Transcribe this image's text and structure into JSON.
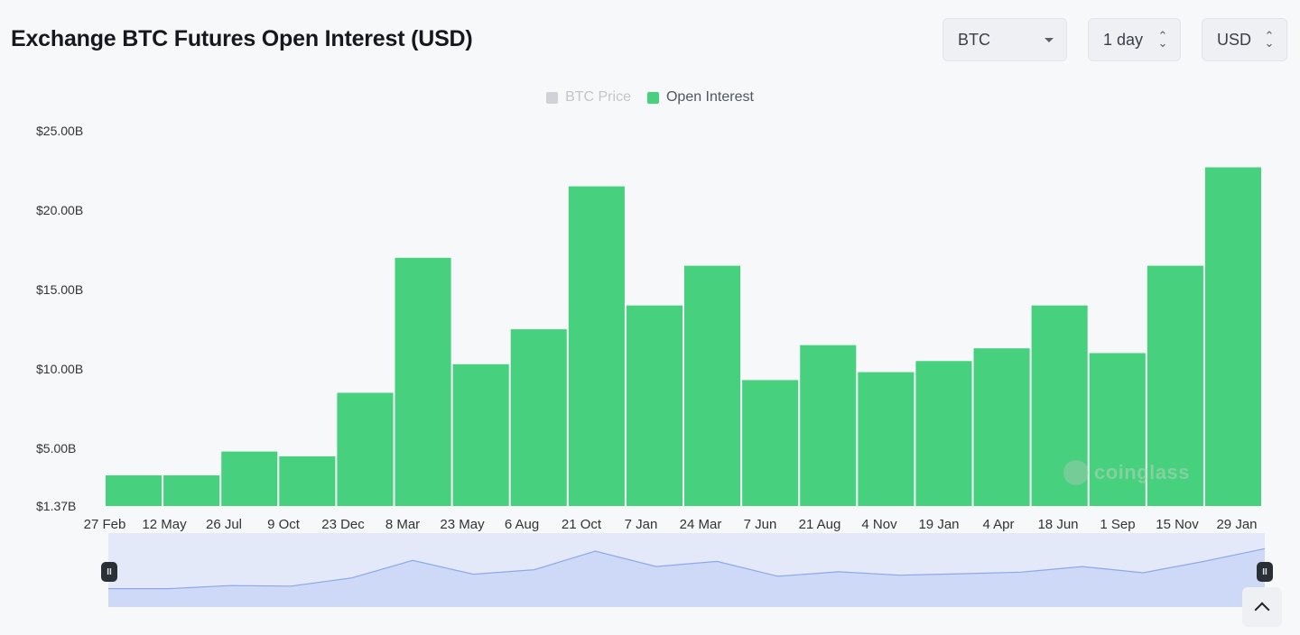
{
  "header": {
    "title": "Exchange BTC Futures Open Interest (USD)"
  },
  "controls": {
    "symbol": "BTC",
    "interval": "1 day",
    "currency": "USD"
  },
  "legend": {
    "btc_price": "BTC Price",
    "open_interest": "Open Interest"
  },
  "watermark": "coinglass",
  "colors": {
    "open_interest": "#47d17e",
    "btc_price_disabled": "#cfd2d6",
    "navigator_fill": "#cdd9f6",
    "navigator_line": "#8fa8ea"
  },
  "chart_data": {
    "type": "bar",
    "title": "Exchange BTC Futures Open Interest (USD)",
    "y_unit": "USD billions",
    "ylim": [
      1.37,
      25
    ],
    "y_ticks": [
      "$25.00B",
      "$20.00B",
      "$15.00B",
      "$10.00B",
      "$5.00B",
      "$1.37B"
    ],
    "y_tick_values": [
      25,
      20,
      15,
      10,
      5,
      1.37
    ],
    "x_ticks": [
      "27 Feb",
      "12 May",
      "26 Jul",
      "9 Oct",
      "23 Dec",
      "8 Mar",
      "23 May",
      "6 Aug",
      "21 Oct",
      "7 Jan",
      "24 Mar",
      "7 Jun",
      "21 Aug",
      "4 Nov",
      "19 Jan",
      "4 Apr",
      "18 Jun",
      "1 Sep",
      "15 Nov",
      "29 Jan"
    ],
    "legend_position": "top-center",
    "grid": false,
    "series": [
      {
        "name": "Open Interest",
        "x": [
          "27 Feb",
          "12 May",
          "26 Jul",
          "9 Oct",
          "23 Dec",
          "8 Mar",
          "23 May",
          "6 Aug",
          "21 Oct",
          "7 Jan",
          "24 Mar",
          "7 Jun",
          "21 Aug",
          "4 Nov",
          "19 Jan",
          "4 Apr",
          "18 Jun",
          "1 Sep",
          "15 Nov",
          "29 Jan"
        ],
        "values": [
          3.3,
          3.3,
          4.8,
          4.5,
          8.5,
          17.0,
          10.3,
          12.5,
          21.5,
          14.0,
          16.5,
          9.3,
          11.5,
          9.8,
          10.5,
          11.3,
          14.0,
          11.0,
          16.5,
          22.7
        ]
      },
      {
        "name": "BTC Price",
        "hidden": true
      }
    ],
    "navigator": {
      "range_start": "27 Feb",
      "range_end": "29 Jan"
    }
  }
}
